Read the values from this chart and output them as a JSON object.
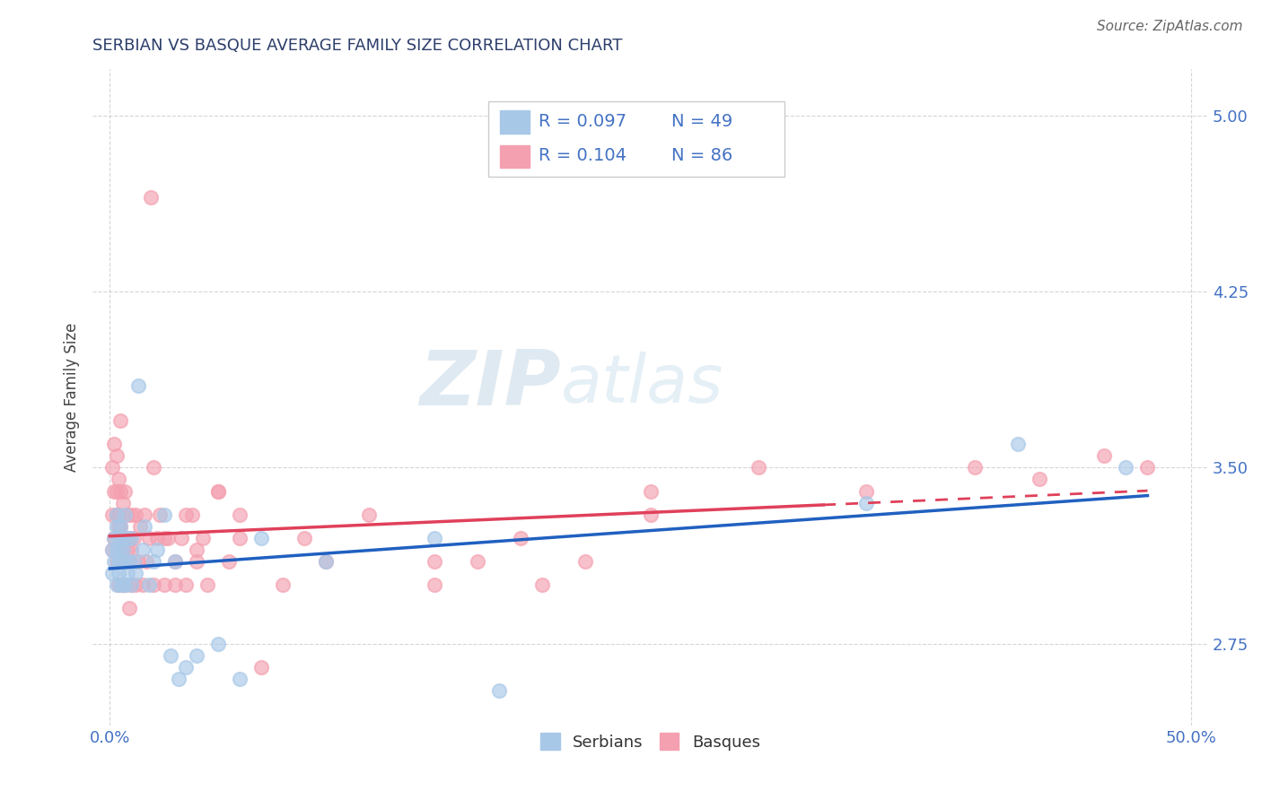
{
  "title": "SERBIAN VS BASQUE AVERAGE FAMILY SIZE CORRELATION CHART",
  "source": "Source: ZipAtlas.com",
  "ylabel": "Average Family Size",
  "ylim": [
    2.4,
    5.2
  ],
  "xlim": [
    -0.008,
    0.508
  ],
  "yticks": [
    2.75,
    3.5,
    4.25,
    5.0
  ],
  "xticks": [
    0.0,
    0.5
  ],
  "xtick_labels": [
    "0.0%",
    "50.0%"
  ],
  "serbian_color": "#a8c8e8",
  "basque_color": "#f4a0b0",
  "serbian_line_color": "#2060c0",
  "basque_line_color": "#e0405a",
  "serbian_R": 0.097,
  "serbian_N": 49,
  "basque_R": 0.104,
  "basque_N": 86,
  "watermark_zip": "ZIP",
  "watermark_atlas": "atlas",
  "title_color": "#2c3e6b",
  "axis_color": "#4472c4",
  "source_color": "#666666",
  "grid_color": "#cccccc",
  "serbian_x": [
    0.001,
    0.001,
    0.002,
    0.002,
    0.003,
    0.003,
    0.003,
    0.003,
    0.004,
    0.004,
    0.004,
    0.005,
    0.005,
    0.005,
    0.005,
    0.006,
    0.006,
    0.006,
    0.007,
    0.007,
    0.007,
    0.008,
    0.008,
    0.009,
    0.01,
    0.01,
    0.011,
    0.012,
    0.013,
    0.015,
    0.016,
    0.018,
    0.02,
    0.022,
    0.025,
    0.028,
    0.03,
    0.032,
    0.035,
    0.04,
    0.05,
    0.06,
    0.07,
    0.1,
    0.15,
    0.18,
    0.35,
    0.42,
    0.47
  ],
  "serbian_y": [
    3.15,
    3.05,
    3.2,
    3.1,
    3.0,
    3.15,
    3.25,
    3.3,
    3.05,
    3.2,
    3.1,
    3.0,
    3.15,
    3.25,
    3.1,
    3.0,
    3.15,
    3.2,
    3.0,
    3.1,
    3.3,
    3.05,
    3.2,
    3.1,
    3.2,
    3.0,
    3.1,
    3.05,
    3.85,
    3.15,
    3.25,
    3.0,
    3.1,
    3.15,
    3.3,
    2.7,
    3.1,
    2.6,
    2.65,
    2.7,
    2.75,
    2.6,
    3.2,
    3.1,
    3.2,
    2.55,
    3.35,
    3.6,
    3.5
  ],
  "basque_x": [
    0.001,
    0.001,
    0.001,
    0.002,
    0.002,
    0.002,
    0.003,
    0.003,
    0.003,
    0.003,
    0.004,
    0.004,
    0.004,
    0.004,
    0.005,
    0.005,
    0.005,
    0.005,
    0.006,
    0.006,
    0.006,
    0.006,
    0.007,
    0.007,
    0.007,
    0.008,
    0.008,
    0.008,
    0.009,
    0.009,
    0.009,
    0.01,
    0.01,
    0.01,
    0.011,
    0.012,
    0.012,
    0.013,
    0.014,
    0.015,
    0.016,
    0.017,
    0.018,
    0.019,
    0.02,
    0.022,
    0.023,
    0.025,
    0.027,
    0.03,
    0.033,
    0.035,
    0.038,
    0.04,
    0.043,
    0.045,
    0.05,
    0.055,
    0.06,
    0.07,
    0.08,
    0.09,
    0.1,
    0.12,
    0.15,
    0.17,
    0.19,
    0.22,
    0.25,
    0.02,
    0.025,
    0.03,
    0.035,
    0.04,
    0.05,
    0.06,
    0.15,
    0.2,
    0.25,
    0.3,
    0.35,
    0.4,
    0.43,
    0.46,
    0.48,
    0.005
  ],
  "basque_y": [
    3.5,
    3.3,
    3.15,
    3.4,
    3.6,
    3.2,
    3.4,
    3.1,
    3.3,
    3.55,
    3.0,
    3.25,
    3.45,
    3.3,
    3.1,
    3.25,
    3.4,
    3.1,
    3.0,
    3.2,
    3.35,
    3.15,
    3.0,
    3.2,
    3.4,
    3.1,
    3.3,
    3.15,
    2.9,
    3.2,
    3.1,
    3.0,
    3.3,
    3.15,
    3.2,
    3.0,
    3.3,
    3.1,
    3.25,
    3.0,
    3.3,
    3.1,
    3.2,
    4.65,
    3.0,
    3.2,
    3.3,
    3.0,
    3.2,
    3.1,
    3.2,
    3.0,
    3.3,
    3.1,
    3.2,
    3.0,
    3.4,
    3.1,
    3.3,
    2.65,
    3.0,
    3.2,
    3.1,
    3.3,
    3.0,
    3.1,
    3.2,
    3.1,
    3.3,
    3.5,
    3.2,
    3.0,
    3.3,
    3.15,
    3.4,
    3.2,
    3.1,
    3.0,
    3.4,
    3.5,
    3.4,
    3.5,
    3.45,
    3.55,
    3.5,
    3.7
  ]
}
